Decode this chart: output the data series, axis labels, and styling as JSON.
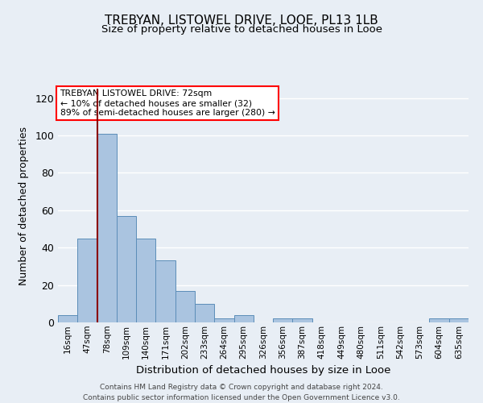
{
  "title1": "TREBYAN, LISTOWEL DRIVE, LOOE, PL13 1LB",
  "title2": "Size of property relative to detached houses in Looe",
  "xlabel": "Distribution of detached houses by size in Looe",
  "ylabel": "Number of detached properties",
  "footer": "Contains HM Land Registry data © Crown copyright and database right 2024.\nContains public sector information licensed under the Open Government Licence v3.0.",
  "bin_labels": [
    "16sqm",
    "47sqm",
    "78sqm",
    "109sqm",
    "140sqm",
    "171sqm",
    "202sqm",
    "233sqm",
    "264sqm",
    "295sqm",
    "326sqm",
    "356sqm",
    "387sqm",
    "418sqm",
    "449sqm",
    "480sqm",
    "511sqm",
    "542sqm",
    "573sqm",
    "604sqm",
    "635sqm"
  ],
  "bar_values": [
    4,
    45,
    101,
    57,
    45,
    33,
    17,
    10,
    2,
    4,
    0,
    2,
    2,
    0,
    0,
    0,
    0,
    0,
    0,
    2,
    2
  ],
  "bar_color": "#aac4e0",
  "bar_edge_color": "#5b8db8",
  "background_color": "#e8eef5",
  "ax_background_color": "#e8eef5",
  "ylim": [
    0,
    125
  ],
  "yticks": [
    0,
    20,
    40,
    60,
    80,
    100,
    120
  ],
  "property_bin_index": 2,
  "annotation_title": "TREBYAN LISTOWEL DRIVE: 72sqm",
  "annotation_line1": "← 10% of detached houses are smaller (32)",
  "annotation_line2": "89% of semi-detached houses are larger (280) →"
}
